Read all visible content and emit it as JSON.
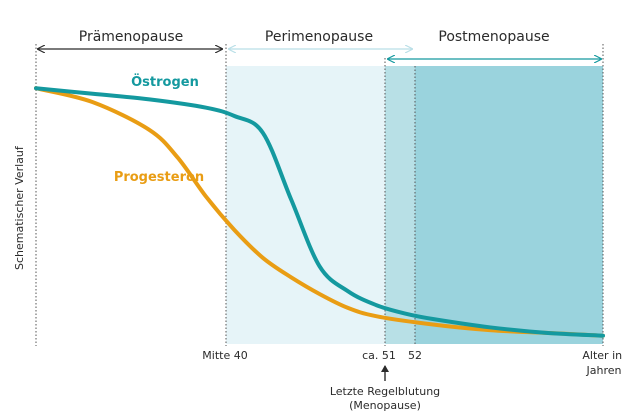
{
  "colors": {
    "oestrogen": "#14999f",
    "progesteron": "#e99d14",
    "perimenopause_bg": "#e6f4f8",
    "postmenopause_early_bg": "#b8e0e6",
    "postmenopause_bg": "#9ad3dd",
    "arrow_dark": "#2b2b2b",
    "arrow_light": "#b9dfe7",
    "arrow_post": "#14999f",
    "text": "#2b2b2b"
  },
  "phases": {
    "praemenopause": "Prämenopause",
    "perimenopause": "Perimenopause",
    "postmenopause": "Postmenopause"
  },
  "chart_data": {
    "type": "line",
    "ylabel": "Schematischer Verlauf",
    "xlabel": "Alter in Jahren",
    "x_ticks": [
      "Mitte 40",
      "ca. 51",
      "52"
    ],
    "annotation": {
      "line1": "Letzte Regelblutung",
      "line2": "(Menopause)"
    },
    "series": [
      {
        "name": "Östrogen",
        "key": "oestrogen",
        "x": [
          0,
          1,
          2,
          3,
          3.5,
          4,
          4.5,
          5,
          5.5,
          6,
          6.5,
          7,
          8,
          9,
          10
        ],
        "values": [
          92,
          90,
          88,
          85,
          82,
          76,
          52,
          28,
          19,
          14,
          11,
          9,
          6,
          4,
          3
        ]
      },
      {
        "name": "Progesteron",
        "key": "progesteron",
        "x": [
          0,
          1,
          2,
          2.5,
          3,
          3.5,
          4,
          4.5,
          5,
          5.5,
          6,
          7,
          8,
          9,
          10
        ],
        "values": [
          92,
          87,
          77,
          67,
          53,
          41,
          31,
          24,
          18,
          13,
          10,
          7,
          5,
          4,
          3
        ]
      }
    ]
  }
}
